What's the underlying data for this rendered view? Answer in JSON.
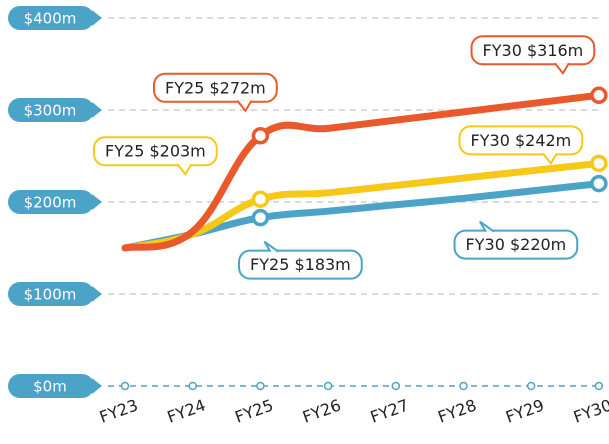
{
  "chart_data": {
    "type": "line",
    "categories": [
      "FY23",
      "FY24",
      "FY25",
      "FY26",
      "FY27",
      "FY28",
      "FY29",
      "FY30"
    ],
    "series": [
      {
        "color": "#4ba3c7",
        "values": [
          150,
          165,
          183,
          190,
          197,
          204,
          212,
          220
        ],
        "value_labels": [
          null,
          null,
          "FY25 $183m",
          null,
          null,
          null,
          null,
          "FY30 $220m"
        ]
      },
      {
        "color": "#f8c818",
        "values": [
          150,
          165,
          203,
          210,
          218,
          226,
          234,
          242
        ],
        "value_labels": [
          null,
          null,
          "FY25 $203m",
          null,
          null,
          null,
          null,
          "FY30 $242m"
        ]
      },
      {
        "color": "#e9592b",
        "values": [
          150,
          168,
          272,
          280,
          289,
          298,
          307,
          316
        ],
        "value_labels": [
          null,
          null,
          "FY25 $272m",
          null,
          null,
          null,
          null,
          "FY30 $316m"
        ]
      }
    ],
    "ylim": [
      0,
      400
    ],
    "yticks": [
      {
        "value": 0,
        "label": "$0m"
      },
      {
        "value": 100,
        "label": "$100m"
      },
      {
        "value": 200,
        "label": "$200m"
      },
      {
        "value": 300,
        "label": "$300m"
      },
      {
        "value": 400,
        "label": "$400m"
      }
    ],
    "grid": true,
    "axis_color": "#4ba3c7"
  }
}
